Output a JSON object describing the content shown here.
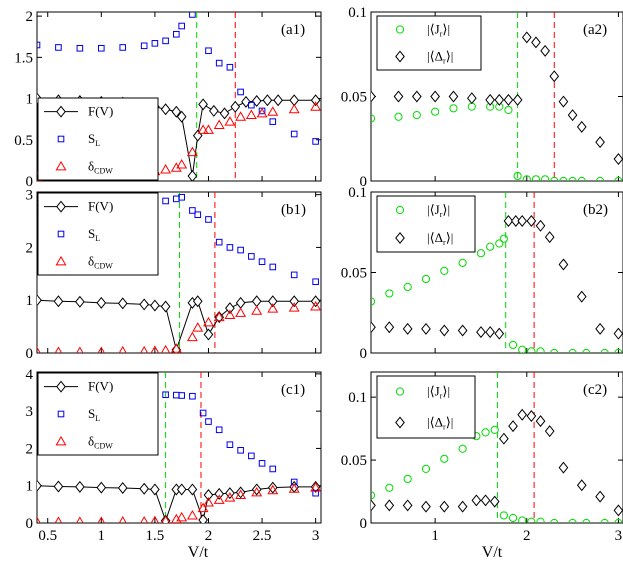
{
  "figure": {
    "xlabel_left": "V/t",
    "xlabel_right": "V/t"
  },
  "colors": {
    "green": "#00dd00",
    "red": "#ff0000",
    "blue": "#0000ee",
    "black": "#000000"
  },
  "chart_data": [
    {
      "panel": "(a1)",
      "type": "line",
      "xlim": [
        0.4,
        3.05
      ],
      "ylim": [
        0,
        2.05
      ],
      "xticks": [
        0.5,
        1,
        1.5,
        2,
        2.5,
        3
      ],
      "yticks": [
        0,
        0.5,
        1,
        1.5,
        2
      ],
      "xticklabels": [
        "0.5",
        "1",
        "1.5",
        "2",
        "2.5",
        "3"
      ],
      "yticklabels": [
        "0",
        "0.5",
        "1",
        "1.5",
        "2"
      ],
      "vlines": [
        {
          "x": 1.89,
          "color": "green"
        },
        {
          "x": 2.25,
          "color": "red"
        }
      ],
      "legend_corner": "bottom-left",
      "series": [
        {
          "name": "F(V)",
          "marker": "diamond",
          "line": true,
          "color": "black",
          "x": [
            0.4,
            0.6,
            0.8,
            1.0,
            1.2,
            1.4,
            1.5,
            1.6,
            1.7,
            1.75,
            1.85,
            1.9,
            1.95,
            2.05,
            2.15,
            2.25,
            2.35,
            2.45,
            2.55,
            2.65,
            2.8,
            3.0
          ],
          "y": [
            1,
            0.98,
            0.97,
            0.96,
            0.95,
            0.93,
            0.9,
            0.87,
            0.84,
            0.78,
            0.06,
            0.55,
            0.93,
            0.85,
            0.82,
            0.9,
            0.96,
            0.97,
            0.98,
            0.98,
            0.98,
            0.98
          ]
        },
        {
          "name": "S_L",
          "sub": "L",
          "base": "S",
          "marker": "square",
          "line": false,
          "color": "blue",
          "x": [
            0.4,
            0.6,
            0.8,
            1.0,
            1.2,
            1.4,
            1.5,
            1.6,
            1.7,
            1.75,
            1.85,
            2.0,
            2.1,
            2.2,
            2.3,
            2.4,
            2.5,
            2.6,
            2.8,
            3.0
          ],
          "y": [
            1.65,
            1.62,
            1.61,
            1.61,
            1.62,
            1.64,
            1.67,
            1.7,
            1.78,
            1.88,
            2.02,
            1.58,
            1.43,
            1.38,
            1.08,
            0.92,
            0.85,
            0.72,
            0.57,
            0.48
          ]
        },
        {
          "name": "δ_CDW",
          "sub": "CDW",
          "base": "δ",
          "marker": "triangle",
          "line": false,
          "color": "red",
          "x": [
            0.4,
            0.6,
            0.8,
            1.0,
            1.2,
            1.4,
            1.5,
            1.6,
            1.7,
            1.75,
            1.85,
            1.95,
            2.0,
            2.1,
            2.2,
            2.3,
            2.4,
            2.5,
            2.6,
            2.8,
            3.0
          ],
          "y": [
            0.05,
            0.06,
            0.07,
            0.08,
            0.09,
            0.1,
            0.12,
            0.14,
            0.16,
            0.2,
            0.35,
            0.62,
            0.62,
            0.68,
            0.72,
            0.78,
            0.8,
            0.82,
            0.84,
            0.87,
            0.9
          ]
        }
      ]
    },
    {
      "panel": "(a2)",
      "type": "scatter",
      "xlim": [
        0.3,
        3.05
      ],
      "ylim": [
        0,
        0.1
      ],
      "xticks": [
        1,
        2,
        3
      ],
      "yticks": [
        0,
        0.05,
        0.1
      ],
      "xticklabels": [
        "1",
        "2",
        "3"
      ],
      "yticklabels": [
        "0",
        "0.05",
        "0.1"
      ],
      "vlines": [
        {
          "x": 1.9,
          "color": "green"
        },
        {
          "x": 2.3,
          "color": "red"
        }
      ],
      "legend_corner": "top-left",
      "series": [
        {
          "name": "|⟨J_r⟩|",
          "base": "|⟨J",
          "sub": "r",
          "post": "⟩|",
          "marker": "circle",
          "line": false,
          "color": "green",
          "x": [
            0.3,
            0.6,
            0.8,
            1.0,
            1.2,
            1.4,
            1.6,
            1.7,
            1.8,
            1.9,
            2.0,
            2.1,
            2.2,
            2.3,
            2.4,
            2.5,
            2.6,
            2.8,
            3.0
          ],
          "y": [
            0.037,
            0.038,
            0.039,
            0.041,
            0.043,
            0.044,
            0.044,
            0.044,
            0.042,
            0.003,
            0.001,
            0.001,
            0.001,
            0,
            0,
            0,
            0,
            0,
            0
          ]
        },
        {
          "name": "|⟨Δ_r⟩|",
          "base": "|⟨Δ",
          "sub": "r",
          "post": "⟩|",
          "marker": "diamond",
          "line": false,
          "color": "black",
          "x": [
            0.3,
            0.6,
            0.8,
            1.0,
            1.2,
            1.4,
            1.6,
            1.7,
            1.8,
            1.9,
            2.0,
            2.1,
            2.2,
            2.3,
            2.4,
            2.5,
            2.6,
            2.8,
            3.0
          ],
          "y": [
            0.05,
            0.05,
            0.05,
            0.05,
            0.05,
            0.049,
            0.048,
            0.048,
            0.048,
            0.048,
            0.085,
            0.082,
            0.077,
            0.062,
            0.047,
            0.039,
            0.032,
            0.023,
            0.013
          ]
        }
      ]
    },
    {
      "panel": "(b1)",
      "type": "line",
      "xlim": [
        0.4,
        3.05
      ],
      "ylim": [
        0,
        3.05
      ],
      "xticks": [
        0.5,
        1,
        1.5,
        2,
        2.5,
        3
      ],
      "yticks": [
        0,
        1,
        2,
        3
      ],
      "xticklabels": [
        "0.5",
        "1",
        "1.5",
        "2",
        "2.5",
        "3"
      ],
      "yticklabels": [
        "0",
        "1",
        "2",
        "3"
      ],
      "vlines": [
        {
          "x": 1.73,
          "color": "green"
        },
        {
          "x": 2.06,
          "color": "red"
        }
      ],
      "legend_corner": "top-left",
      "series": [
        {
          "name": "F(V)",
          "marker": "diamond",
          "line": true,
          "color": "black",
          "x": [
            0.4,
            0.6,
            0.8,
            1.0,
            1.2,
            1.4,
            1.5,
            1.6,
            1.7,
            1.85,
            1.9,
            2.0,
            2.1,
            2.2,
            2.3,
            2.45,
            2.6,
            2.8,
            3.0
          ],
          "y": [
            1,
            0.98,
            0.97,
            0.95,
            0.94,
            0.92,
            0.9,
            0.88,
            0.06,
            0.95,
            0.98,
            0.35,
            0.68,
            0.85,
            0.95,
            0.98,
            0.98,
            0.98,
            0.98
          ]
        },
        {
          "name": "S_L",
          "base": "S",
          "sub": "L",
          "marker": "square",
          "line": false,
          "color": "blue",
          "x": [
            0.4,
            0.6,
            0.8,
            1.0,
            1.2,
            1.4,
            1.5,
            1.6,
            1.7,
            1.75,
            1.85,
            1.9,
            2.0,
            2.1,
            2.2,
            2.3,
            2.4,
            2.5,
            2.6,
            2.8,
            3.0
          ],
          "y": [
            2.8,
            2.8,
            2.8,
            2.82,
            2.83,
            2.84,
            2.86,
            2.88,
            2.92,
            2.95,
            2.7,
            2.62,
            2.53,
            2.1,
            2.0,
            1.95,
            1.83,
            1.73,
            1.63,
            1.48,
            1.35
          ]
        },
        {
          "name": "δ_CDW",
          "base": "δ",
          "sub": "CDW",
          "marker": "triangle",
          "line": false,
          "color": "red",
          "x": [
            0.4,
            0.6,
            0.8,
            1.0,
            1.2,
            1.4,
            1.5,
            1.6,
            1.7,
            1.85,
            1.9,
            2.0,
            2.1,
            2.2,
            2.3,
            2.45,
            2.6,
            2.8,
            3.0
          ],
          "y": [
            0.02,
            0.02,
            0.02,
            0.02,
            0.03,
            0.03,
            0.04,
            0.05,
            0.08,
            0.3,
            0.48,
            0.58,
            0.68,
            0.72,
            0.76,
            0.8,
            0.84,
            0.86,
            0.88
          ]
        }
      ]
    },
    {
      "panel": "(b2)",
      "type": "scatter",
      "xlim": [
        0.3,
        3.05
      ],
      "ylim": [
        0,
        0.1
      ],
      "xticks": [
        1,
        2,
        3
      ],
      "yticks": [
        0,
        0.05,
        0.1
      ],
      "xticklabels": [
        "1",
        "2",
        "3"
      ],
      "yticklabels": [
        "0",
        "0.05",
        "0.1"
      ],
      "vlines": [
        {
          "x": 1.77,
          "color": "green"
        },
        {
          "x": 2.08,
          "color": "red"
        }
      ],
      "legend_corner": "top-left",
      "series": [
        {
          "name": "|⟨J_r⟩|",
          "base": "|⟨J",
          "sub": "r",
          "post": "⟩|",
          "marker": "circle",
          "line": false,
          "color": "green",
          "x": [
            0.3,
            0.5,
            0.7,
            0.9,
            1.1,
            1.3,
            1.5,
            1.6,
            1.7,
            1.75,
            1.85,
            1.95,
            2.05,
            2.15,
            2.3,
            2.5,
            2.65,
            2.85,
            3.0
          ],
          "y": [
            0.032,
            0.037,
            0.041,
            0.046,
            0.051,
            0.056,
            0.062,
            0.066,
            0.068,
            0.071,
            0.005,
            0.002,
            0.001,
            0.001,
            0,
            0,
            0,
            0,
            0
          ]
        },
        {
          "name": "|⟨Δ_r⟩|",
          "base": "|⟨Δ",
          "sub": "r",
          "post": "⟩|",
          "marker": "diamond",
          "line": false,
          "color": "black",
          "x": [
            0.3,
            0.5,
            0.7,
            0.9,
            1.1,
            1.3,
            1.5,
            1.6,
            1.7,
            1.8,
            1.88,
            1.95,
            2.05,
            2.15,
            2.25,
            2.4,
            2.6,
            2.8,
            3.0
          ],
          "y": [
            0.016,
            0.016,
            0.015,
            0.015,
            0.014,
            0.014,
            0.013,
            0.013,
            0.012,
            0.082,
            0.082,
            0.082,
            0.082,
            0.079,
            0.072,
            0.055,
            0.035,
            0.015,
            0.012
          ]
        }
      ]
    },
    {
      "panel": "(c1)",
      "type": "line",
      "xlim": [
        0.4,
        3.05
      ],
      "ylim": [
        0,
        4.05
      ],
      "xticks": [
        0.5,
        1,
        1.5,
        2,
        2.5,
        3
      ],
      "yticks": [
        0,
        1,
        2,
        3,
        4
      ],
      "xticklabels": [
        "0.5",
        "1",
        "1.5",
        "2",
        "2.5",
        "3"
      ],
      "yticklabels": [
        "0",
        "1",
        "2",
        "3",
        "4"
      ],
      "vlines": [
        {
          "x": 1.6,
          "color": "green"
        },
        {
          "x": 1.93,
          "color": "red"
        }
      ],
      "legend_corner": "top-left",
      "series": [
        {
          "name": "F(V)",
          "marker": "diamond",
          "line": true,
          "color": "black",
          "x": [
            0.4,
            0.6,
            0.8,
            1.0,
            1.2,
            1.4,
            1.5,
            1.6,
            1.7,
            1.75,
            1.85,
            1.95,
            2.0,
            2.1,
            2.2,
            2.3,
            2.45,
            2.6,
            2.8,
            3.0
          ],
          "y": [
            1,
            0.98,
            0.97,
            0.95,
            0.94,
            0.92,
            0.9,
            0.06,
            0.9,
            0.9,
            0.9,
            0.08,
            0.75,
            0.78,
            0.8,
            0.82,
            0.9,
            0.95,
            0.97,
            0.97
          ]
        },
        {
          "name": "S_L",
          "base": "S",
          "sub": "L",
          "marker": "square",
          "line": false,
          "color": "blue",
          "x": [
            0.4,
            0.6,
            0.8,
            1.0,
            1.2,
            1.4,
            1.5,
            1.6,
            1.7,
            1.75,
            1.85,
            1.95,
            2.0,
            2.1,
            2.2,
            2.3,
            2.4,
            2.5,
            2.6,
            2.8,
            3.0
          ],
          "y": [
            3.75,
            3.76,
            3.77,
            3.78,
            3.79,
            3.8,
            3.82,
            3.44,
            3.43,
            3.42,
            3.4,
            2.95,
            2.72,
            2.5,
            2.1,
            1.95,
            1.8,
            1.6,
            1.45,
            1.1,
            0.8
          ]
        },
        {
          "name": "δ_CDW",
          "base": "δ",
          "sub": "CDW",
          "marker": "triangle",
          "line": false,
          "color": "red",
          "x": [
            0.4,
            0.6,
            0.8,
            1.0,
            1.2,
            1.4,
            1.5,
            1.6,
            1.7,
            1.75,
            1.85,
            1.95,
            2.0,
            2.1,
            2.2,
            2.3,
            2.45,
            2.6,
            2.8,
            3.0
          ],
          "y": [
            0.03,
            0.03,
            0.03,
            0.03,
            0.04,
            0.04,
            0.05,
            0.06,
            0.1,
            0.15,
            0.2,
            0.4,
            0.55,
            0.62,
            0.68,
            0.75,
            0.82,
            0.88,
            0.92,
            0.95
          ]
        }
      ]
    },
    {
      "panel": "(c2)",
      "type": "scatter",
      "xlim": [
        0.3,
        3.05
      ],
      "ylim": [
        0,
        0.12
      ],
      "xticks": [
        1,
        2,
        3
      ],
      "yticks": [
        0,
        0.05,
        0.1
      ],
      "xticklabels": [
        "1",
        "2",
        "3"
      ],
      "yticklabels": [
        "0",
        "0.05",
        "0.1"
      ],
      "vlines": [
        {
          "x": 1.68,
          "color": "green"
        },
        {
          "x": 2.08,
          "color": "red"
        }
      ],
      "legend_corner": "top-left",
      "series": [
        {
          "name": "|⟨J_r⟩|",
          "base": "|⟨J",
          "sub": "r",
          "post": "⟩|",
          "marker": "circle",
          "line": false,
          "color": "green",
          "x": [
            0.3,
            0.5,
            0.7,
            0.9,
            1.1,
            1.3,
            1.45,
            1.55,
            1.65,
            1.75,
            1.85,
            1.95,
            2.05,
            2.15,
            2.3,
            2.5,
            2.65,
            2.85,
            3.0
          ],
          "y": [
            0.022,
            0.028,
            0.035,
            0.043,
            0.051,
            0.059,
            0.069,
            0.072,
            0.074,
            0.006,
            0.004,
            0.002,
            0.001,
            0.001,
            0,
            0,
            0,
            0,
            0
          ]
        },
        {
          "name": "|⟨Δ_r⟩|",
          "base": "|⟨Δ",
          "sub": "r",
          "post": "⟩|",
          "marker": "diamond",
          "line": false,
          "color": "black",
          "x": [
            0.3,
            0.5,
            0.7,
            0.9,
            1.1,
            1.3,
            1.45,
            1.55,
            1.65,
            1.75,
            1.85,
            1.95,
            2.05,
            2.15,
            2.25,
            2.4,
            2.6,
            2.8,
            3.0
          ],
          "y": [
            0.014,
            0.014,
            0.014,
            0.013,
            0.013,
            0.013,
            0.018,
            0.018,
            0.017,
            0.067,
            0.077,
            0.086,
            0.085,
            0.081,
            0.073,
            0.044,
            0.03,
            0.021,
            0.01
          ]
        }
      ]
    }
  ]
}
